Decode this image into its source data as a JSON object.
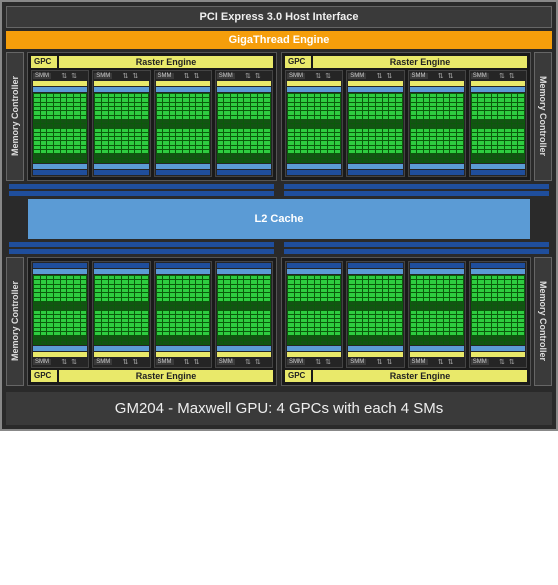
{
  "pci_label": "PCI Express 3.0 Host Interface",
  "giga_label": "GigaThread Engine",
  "memctrl_label": "Memory Controller",
  "gpc_label": "GPC",
  "raster_label": "Raster Engine",
  "smm_label": "SMM",
  "l2_label": "L2 Cache",
  "caption": "GM204 - Maxwell GPU: 4 GPCs with each 4 SMs",
  "colors": {
    "chip_bg": "#2a2a2a",
    "pci_bg": "#3a3a3a",
    "giga_bg": "#f59e0b",
    "yellow": "#e9e96a",
    "blue": "#5b9bd5",
    "darkblue": "#1f4e9c",
    "core_green": "#2ecc40",
    "core_green_dark": "#0b5a0b"
  },
  "layout": {
    "gpc_count": 4,
    "sm_per_gpc": 4,
    "quads_per_sm": 4,
    "cores_per_quad_cols": 4,
    "cores_per_quad_rows": 8
  }
}
